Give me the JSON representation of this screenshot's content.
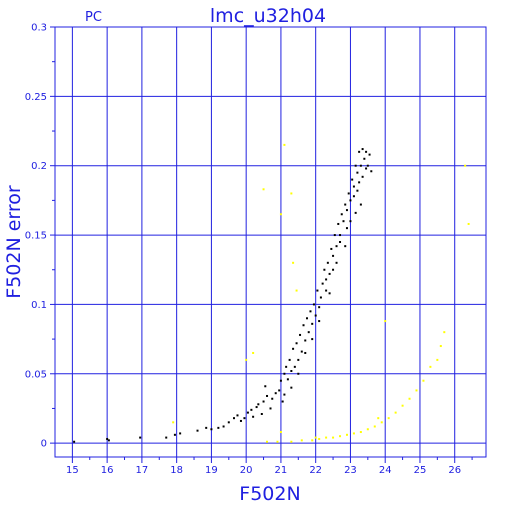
{
  "chart_data": {
    "type": "scatter",
    "title": "lmc_u32h04",
    "corner_label": "PC",
    "xlabel": "F502N",
    "ylabel": "F502N error",
    "xlim": [
      14.5,
      26.9
    ],
    "ylim": [
      -0.01,
      0.3
    ],
    "grid": true,
    "x_ticks": [
      15,
      16,
      17,
      18,
      19,
      20,
      21,
      22,
      23,
      24,
      25,
      26
    ],
    "x_tick_labels": [
      "15",
      "16",
      "17",
      "18",
      "19",
      "20",
      "21",
      "22",
      "23",
      "24",
      "25",
      "26"
    ],
    "y_ticks": [
      0,
      0.05,
      0.1,
      0.15,
      0.2,
      0.25,
      0.3
    ],
    "y_tick_labels": [
      "0",
      "0.05",
      "0.1",
      "0.15",
      "0.2",
      "0.25",
      "0.3"
    ],
    "colors": {
      "frame": "#2020e0",
      "grid": "#2020e0",
      "text": "#2020e0",
      "main_series": "#000000",
      "secondary_series": "#ffff00"
    },
    "series": [
      {
        "color": "#000000",
        "points": [
          [
            15.05,
            0.001
          ],
          [
            16.0,
            0.003
          ],
          [
            16.05,
            0.002
          ],
          [
            16.95,
            0.004
          ],
          [
            17.7,
            0.004
          ],
          [
            17.95,
            0.006
          ],
          [
            18.1,
            0.007
          ],
          [
            18.6,
            0.009
          ],
          [
            18.85,
            0.011
          ],
          [
            19.0,
            0.01
          ],
          [
            19.2,
            0.011
          ],
          [
            19.35,
            0.012
          ],
          [
            19.5,
            0.015
          ],
          [
            19.65,
            0.018
          ],
          [
            19.75,
            0.02
          ],
          [
            19.85,
            0.016
          ],
          [
            19.95,
            0.018
          ],
          [
            20.05,
            0.022
          ],
          [
            20.15,
            0.024
          ],
          [
            20.2,
            0.019
          ],
          [
            20.3,
            0.026
          ],
          [
            20.35,
            0.028
          ],
          [
            20.45,
            0.021
          ],
          [
            20.5,
            0.03
          ],
          [
            20.55,
            0.041
          ],
          [
            20.6,
            0.034
          ],
          [
            20.7,
            0.025
          ],
          [
            20.75,
            0.032
          ],
          [
            20.85,
            0.036
          ],
          [
            20.95,
            0.038
          ],
          [
            21.0,
            0.045
          ],
          [
            21.05,
            0.03
          ],
          [
            21.1,
            0.05
          ],
          [
            21.15,
            0.055
          ],
          [
            21.2,
            0.046
          ],
          [
            21.25,
            0.06
          ],
          [
            21.3,
            0.052
          ],
          [
            21.35,
            0.068
          ],
          [
            21.4,
            0.055
          ],
          [
            21.45,
            0.072
          ],
          [
            21.5,
            0.06
          ],
          [
            21.55,
            0.078
          ],
          [
            21.6,
            0.066
          ],
          [
            21.65,
            0.085
          ],
          [
            21.7,
            0.074
          ],
          [
            21.75,
            0.09
          ],
          [
            21.8,
            0.08
          ],
          [
            21.85,
            0.095
          ],
          [
            21.9,
            0.086
          ],
          [
            21.95,
            0.1
          ],
          [
            22.0,
            0.092
          ],
          [
            22.05,
            0.11
          ],
          [
            22.1,
            0.098
          ],
          [
            22.15,
            0.105
          ],
          [
            22.2,
            0.115
          ],
          [
            22.25,
            0.125
          ],
          [
            22.3,
            0.118
          ],
          [
            22.35,
            0.13
          ],
          [
            22.4,
            0.122
          ],
          [
            22.45,
            0.14
          ],
          [
            22.5,
            0.135
          ],
          [
            22.55,
            0.15
          ],
          [
            22.6,
            0.142
          ],
          [
            22.65,
            0.158
          ],
          [
            22.7,
            0.15
          ],
          [
            22.75,
            0.165
          ],
          [
            22.8,
            0.16
          ],
          [
            22.85,
            0.172
          ],
          [
            22.9,
            0.168
          ],
          [
            22.95,
            0.18
          ],
          [
            23.0,
            0.175
          ],
          [
            23.05,
            0.19
          ],
          [
            23.1,
            0.185
          ],
          [
            23.15,
            0.2
          ],
          [
            23.2,
            0.195
          ],
          [
            23.25,
            0.21
          ],
          [
            23.3,
            0.2
          ],
          [
            23.35,
            0.212
          ],
          [
            23.4,
            0.205
          ],
          [
            23.45,
            0.21
          ],
          [
            23.5,
            0.2
          ],
          [
            23.55,
            0.208
          ],
          [
            23.6,
            0.196
          ],
          [
            23.1,
            0.178
          ],
          [
            22.9,
            0.155
          ],
          [
            22.7,
            0.145
          ],
          [
            22.5,
            0.125
          ],
          [
            22.3,
            0.11
          ],
          [
            22.1,
            0.088
          ],
          [
            21.9,
            0.075
          ],
          [
            21.7,
            0.065
          ],
          [
            21.5,
            0.05
          ],
          [
            21.3,
            0.04
          ],
          [
            21.1,
            0.035
          ],
          [
            23.35,
            0.192
          ],
          [
            23.2,
            0.182
          ],
          [
            23.45,
            0.198
          ],
          [
            23.25,
            0.188
          ],
          [
            23.15,
            0.166
          ],
          [
            23.3,
            0.172
          ],
          [
            22.85,
            0.142
          ],
          [
            23.0,
            0.16
          ],
          [
            22.6,
            0.13
          ],
          [
            22.4,
            0.108
          ]
        ]
      },
      {
        "color": "#ffff00",
        "points": [
          [
            17.9,
            0.015
          ],
          [
            20.0,
            0.06
          ],
          [
            20.2,
            0.065
          ],
          [
            20.5,
            0.183
          ],
          [
            21.0,
            0.165
          ],
          [
            21.1,
            0.215
          ],
          [
            21.3,
            0.18
          ],
          [
            21.35,
            0.13
          ],
          [
            21.45,
            0.11
          ],
          [
            20.6,
            0.001
          ],
          [
            20.9,
            0.001
          ],
          [
            21.3,
            0.001
          ],
          [
            21.6,
            0.002
          ],
          [
            21.9,
            0.002
          ],
          [
            22.1,
            0.003
          ],
          [
            22.3,
            0.004
          ],
          [
            22.5,
            0.004
          ],
          [
            22.7,
            0.005
          ],
          [
            22.9,
            0.006
          ],
          [
            23.1,
            0.007
          ],
          [
            23.3,
            0.008
          ],
          [
            23.5,
            0.01
          ],
          [
            23.7,
            0.012
          ],
          [
            23.9,
            0.015
          ],
          [
            24.1,
            0.018
          ],
          [
            24.3,
            0.022
          ],
          [
            24.5,
            0.027
          ],
          [
            24.7,
            0.032
          ],
          [
            24.9,
            0.038
          ],
          [
            25.1,
            0.045
          ],
          [
            25.3,
            0.055
          ],
          [
            25.5,
            0.06
          ],
          [
            25.6,
            0.07
          ],
          [
            25.7,
            0.08
          ],
          [
            26.3,
            0.2
          ],
          [
            26.4,
            0.158
          ],
          [
            24.0,
            0.088
          ],
          [
            21.0,
            0.008
          ],
          [
            22.0,
            0.004
          ],
          [
            23.8,
            0.018
          ]
        ]
      }
    ]
  }
}
